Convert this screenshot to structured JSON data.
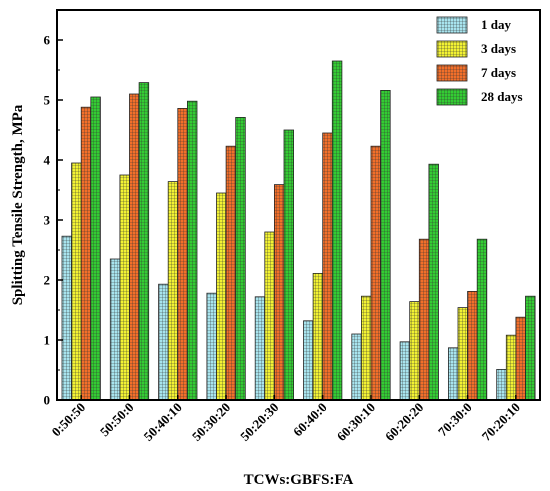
{
  "chart_data": {
    "type": "bar",
    "xlabel": "TCWs:GBFS:FA",
    "ylabel": "Splitting Tensile Strength, MPa",
    "ylim": [
      0,
      6.5
    ],
    "yticks": [
      0,
      1,
      2,
      3,
      4,
      5,
      6
    ],
    "categories": [
      "0:50:50",
      "50:50:0",
      "50:40:10",
      "50:30:20",
      "50:20:30",
      "60:40:0",
      "60:30:10",
      "60:20:20",
      "70:30:0",
      "70:20:10"
    ],
    "legend_position": "top-right",
    "series": [
      {
        "name": "1 day",
        "color": "#a8e4ee",
        "values": [
          2.73,
          2.35,
          1.93,
          1.78,
          1.72,
          1.32,
          1.1,
          0.97,
          0.87,
          0.51
        ]
      },
      {
        "name": "3 days",
        "color": "#f2f233",
        "values": [
          3.95,
          3.75,
          3.64,
          3.45,
          2.8,
          2.11,
          1.73,
          1.64,
          1.54,
          1.08
        ]
      },
      {
        "name": "7 days",
        "color": "#f26f2a",
        "values": [
          4.88,
          5.1,
          4.86,
          4.23,
          3.59,
          4.45,
          4.23,
          2.68,
          1.81,
          1.38
        ]
      },
      {
        "name": "28 days",
        "color": "#33cc33",
        "values": [
          5.05,
          5.29,
          4.98,
          4.71,
          4.5,
          5.65,
          5.16,
          3.93,
          2.68,
          1.73
        ]
      }
    ]
  }
}
